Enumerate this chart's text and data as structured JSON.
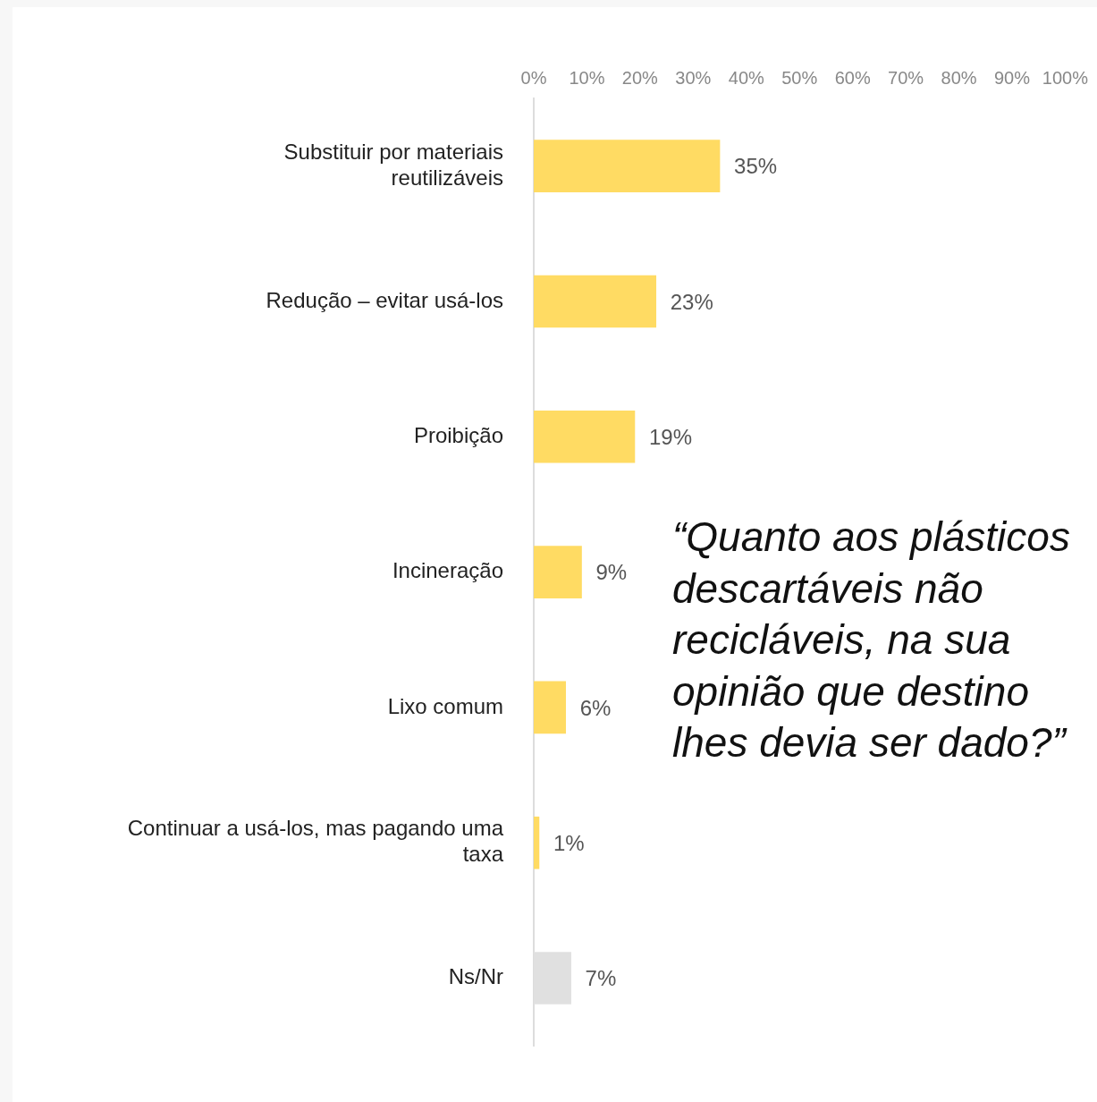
{
  "chart_data": {
    "type": "bar",
    "orientation": "horizontal",
    "categories": [
      "Substituir por materiais reutilizáveis",
      "Redução – evitar usá-los",
      "Proibição",
      "Incineração",
      "Lixo comum",
      "Continuar a usá-los, mas pagando uma taxa",
      "Ns/Nr"
    ],
    "values": [
      35,
      23,
      19,
      9,
      6,
      1,
      7
    ],
    "colors": [
      "#ffdb63",
      "#ffdb63",
      "#ffdb63",
      "#ffdb63",
      "#ffdb63",
      "#ffdb63",
      "#e0e0e0"
    ],
    "value_labels": [
      "35%",
      "23%",
      "19%",
      "9%",
      "6%",
      "1%",
      "7%"
    ],
    "xlim": [
      0,
      100
    ],
    "xticks": [
      {
        "value": 0,
        "label": "0%"
      },
      {
        "value": 10,
        "label": "10%"
      },
      {
        "value": 20,
        "label": "20%"
      },
      {
        "value": 30,
        "label": "30%"
      },
      {
        "value": 40,
        "label": "40%"
      },
      {
        "value": 50,
        "label": "50%"
      },
      {
        "value": 60,
        "label": "60%"
      },
      {
        "value": 70,
        "label": "70%"
      },
      {
        "value": 80,
        "label": "80%"
      },
      {
        "value": 90,
        "label": "90%"
      },
      {
        "value": 100,
        "label": "100%"
      }
    ],
    "grid": false,
    "annotations": [
      "“Quanto aos plásticos descartáveis não recicláveis, na sua opinião que destino lhes devia ser dado?”"
    ]
  }
}
